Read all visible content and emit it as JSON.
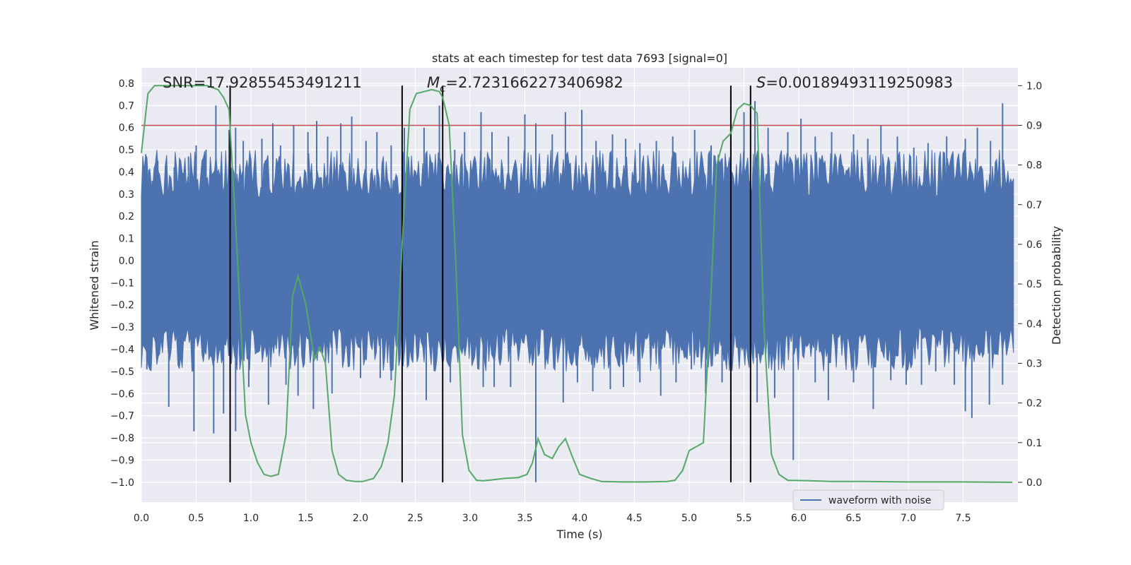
{
  "chart_data": {
    "type": "line",
    "title": "stats at each timestep for test data 7693 [signal=0]",
    "xlabel": "Time (s)",
    "ylabel": "Whitened strain",
    "y2label": "Detection probability",
    "xlim": [
      0.0,
      8.0
    ],
    "ylim": [
      -1.09,
      0.87
    ],
    "y2lim": [
      -0.05,
      1.045
    ],
    "xticks": [
      "0.0",
      "0.5",
      "1.0",
      "1.5",
      "2.0",
      "2.5",
      "3.0",
      "3.5",
      "4.0",
      "4.5",
      "5.0",
      "5.5",
      "6.0",
      "6.5",
      "7.0",
      "7.5"
    ],
    "yticks": [
      "0.8",
      "0.7",
      "0.6",
      "0.5",
      "0.4",
      "0.3",
      "0.2",
      "0.1",
      "0.0",
      "-0.1",
      "-0.2",
      "-0.3",
      "-0.4",
      "-0.5",
      "-0.6",
      "-0.7",
      "-0.8",
      "-0.9",
      "-1.0"
    ],
    "y2ticks": [
      "1.0",
      "0.9",
      "0.8",
      "0.7",
      "0.6",
      "0.5",
      "0.4",
      "0.3",
      "0.2",
      "0.1",
      "0.0"
    ],
    "grid": true,
    "legend_position": "lower-right",
    "annotations": {
      "snr": "SNR=17.92855453491211",
      "mc_symbol": "M",
      "mc_sub": "c",
      "mc_value": "=2.7231662273406982",
      "s_symbol": "S",
      "s_value": "=0.00189493119250983"
    },
    "threshold": {
      "y2": 0.9,
      "color": "#c44e52"
    },
    "vlines": [
      0.81,
      2.38,
      2.75,
      5.38,
      5.56
    ],
    "series": [
      {
        "name": "waveform with noise",
        "color": "#4c72b0",
        "kind": "noisy-strain",
        "core": [
          -0.29,
          0.23
        ],
        "peaks_x": [
          0.07,
          0.1,
          0.15,
          0.3,
          0.43,
          0.5,
          0.59,
          0.68,
          0.8,
          0.86,
          0.93,
          1.1,
          1.2,
          1.27,
          1.39,
          1.52,
          1.6,
          1.7,
          1.82,
          1.92,
          2.05,
          2.15,
          2.28,
          2.4,
          2.58,
          2.72,
          2.86,
          2.95,
          3.1,
          3.2,
          3.35,
          3.5,
          3.6,
          3.75,
          3.87,
          4.02,
          4.15,
          4.3,
          4.42,
          4.55,
          4.7,
          4.85,
          5.05,
          5.2,
          5.5,
          5.6,
          5.72,
          5.9,
          6.02,
          6.15,
          6.3,
          6.5,
          6.63,
          6.75,
          6.9,
          7.05,
          7.18,
          7.35,
          7.52,
          7.63,
          7.75,
          7.86
        ],
        "peaks_y": [
          0.41,
          0.36,
          0.45,
          0.42,
          0.47,
          0.52,
          0.5,
          0.7,
          0.59,
          0.6,
          0.54,
          0.55,
          0.62,
          0.52,
          0.61,
          0.58,
          0.63,
          0.56,
          0.62,
          0.65,
          0.54,
          0.58,
          0.52,
          0.6,
          0.6,
          0.7,
          0.5,
          0.58,
          0.67,
          0.58,
          0.56,
          0.66,
          0.62,
          0.57,
          0.67,
          0.68,
          0.54,
          0.57,
          0.55,
          0.53,
          0.54,
          0.56,
          0.59,
          0.52,
          0.67,
          0.72,
          0.6,
          0.58,
          0.64,
          0.56,
          0.58,
          0.57,
          0.55,
          0.61,
          0.56,
          0.51,
          0.53,
          0.56,
          0.55,
          0.6,
          0.54,
          0.71
        ],
        "troughs_x": [
          0.05,
          0.25,
          0.48,
          0.66,
          0.75,
          0.86,
          0.98,
          1.16,
          1.32,
          1.43,
          1.57,
          1.74,
          1.89,
          2.0,
          2.18,
          2.28,
          2.6,
          2.82,
          3.12,
          3.22,
          3.37,
          3.6,
          3.85,
          3.98,
          4.12,
          4.28,
          4.4,
          4.55,
          4.74,
          4.88,
          5.02,
          5.15,
          5.3,
          5.62,
          5.78,
          5.95,
          6.15,
          6.27,
          6.5,
          6.68,
          6.84,
          6.98,
          7.12,
          7.25,
          7.42,
          7.52,
          7.58,
          7.74,
          7.86
        ],
        "troughs_y": [
          -0.49,
          -0.66,
          -0.77,
          -0.78,
          -0.69,
          -0.77,
          -0.57,
          -0.65,
          -0.56,
          -0.61,
          -0.67,
          -0.6,
          -0.47,
          -0.53,
          -0.53,
          -0.54,
          -0.63,
          -0.55,
          -0.57,
          -0.57,
          -0.57,
          -1.0,
          -0.64,
          -0.55,
          -0.59,
          -0.58,
          -0.57,
          -0.55,
          -0.61,
          -0.55,
          -0.49,
          -0.6,
          -0.55,
          -0.64,
          -0.62,
          -0.9,
          -0.55,
          -0.63,
          -0.55,
          -0.67,
          -0.54,
          -0.56,
          -0.56,
          -0.5,
          -0.56,
          -0.68,
          -0.71,
          -0.65,
          -0.56
        ]
      },
      {
        "name": "",
        "color": "#55a868",
        "axis": "right",
        "x": [
          0.0,
          0.06,
          0.12,
          0.5,
          0.6,
          0.7,
          0.75,
          0.8,
          0.86,
          0.95,
          1.0,
          1.06,
          1.12,
          1.18,
          1.25,
          1.32,
          1.38,
          1.43,
          1.5,
          1.58,
          1.63,
          1.68,
          1.74,
          1.8,
          1.87,
          1.95,
          2.02,
          2.12,
          2.19,
          2.25,
          2.31,
          2.38,
          2.45,
          2.51,
          2.58,
          2.65,
          2.72,
          2.75,
          2.81,
          2.87,
          2.93,
          2.99,
          3.06,
          3.12,
          3.2,
          3.32,
          3.44,
          3.52,
          3.57,
          3.62,
          3.68,
          3.75,
          3.81,
          3.87,
          3.94,
          4.0,
          4.1,
          4.2,
          4.4,
          4.6,
          4.8,
          4.87,
          4.94,
          5.0,
          5.13,
          5.2,
          5.25,
          5.31,
          5.38,
          5.44,
          5.5,
          5.56,
          5.62,
          5.68,
          5.75,
          5.82,
          5.9,
          6.1,
          6.3,
          6.6,
          7.0,
          7.5,
          7.95
        ],
        "y": [
          0.83,
          0.98,
          1.0,
          1.0,
          1.0,
          0.99,
          0.97,
          0.94,
          0.65,
          0.17,
          0.1,
          0.05,
          0.02,
          0.015,
          0.02,
          0.12,
          0.47,
          0.52,
          0.45,
          0.31,
          0.34,
          0.3,
          0.08,
          0.02,
          0.005,
          0.002,
          0.002,
          0.01,
          0.04,
          0.1,
          0.22,
          0.6,
          0.94,
          0.98,
          0.985,
          0.99,
          0.985,
          0.97,
          0.9,
          0.55,
          0.12,
          0.03,
          0.005,
          0.004,
          0.006,
          0.01,
          0.012,
          0.02,
          0.05,
          0.11,
          0.07,
          0.06,
          0.09,
          0.11,
          0.06,
          0.02,
          0.01,
          0.002,
          0.001,
          0.001,
          0.002,
          0.005,
          0.03,
          0.08,
          0.1,
          0.48,
          0.8,
          0.86,
          0.88,
          0.94,
          0.955,
          0.95,
          0.93,
          0.4,
          0.07,
          0.02,
          0.005,
          0.004,
          0.002,
          0.002,
          0.001,
          0.001,
          0.0
        ]
      }
    ]
  }
}
